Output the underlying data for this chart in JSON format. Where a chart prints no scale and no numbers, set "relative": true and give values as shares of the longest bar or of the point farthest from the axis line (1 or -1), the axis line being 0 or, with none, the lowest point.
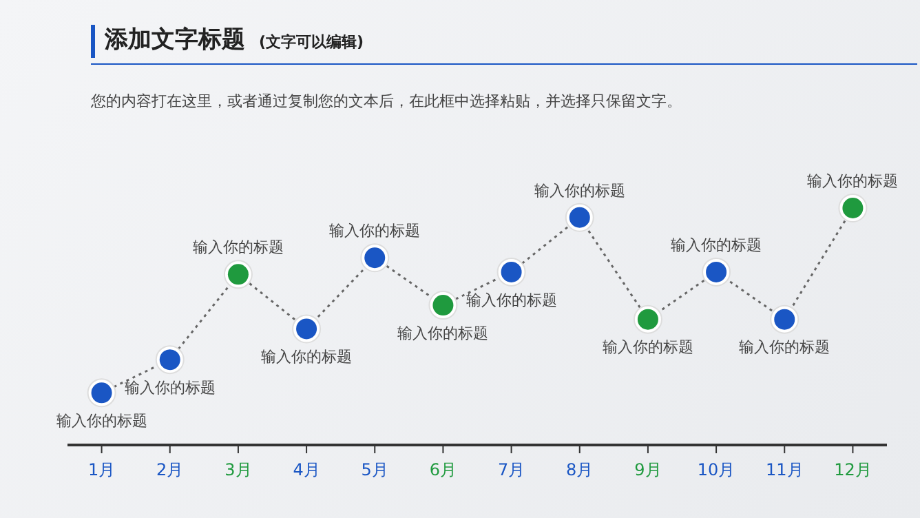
{
  "chart_data": {
    "type": "line",
    "title": "添加文字标题",
    "subtitle": "(文字可以编辑)",
    "categories": [
      "1月",
      "2月",
      "3月",
      "4月",
      "5月",
      "6月",
      "7月",
      "8月",
      "9月",
      "10月",
      "11月",
      "12月"
    ],
    "values": [
      0.22,
      0.36,
      0.72,
      0.49,
      0.79,
      0.59,
      0.73,
      0.96,
      0.53,
      0.73,
      0.53,
      1
    ],
    "colors": [
      "#1a56c4",
      "#1a56c4",
      "#1f9a3e",
      "#1a56c4",
      "#1a56c4",
      "#1f9a3e",
      "#1a56c4",
      "#1a56c4",
      "#1f9a3e",
      "#1a56c4",
      "#1a56c4",
      "#1f9a3e"
    ],
    "color": "#666666",
    "relative": true,
    "marker": "circle",
    "line_style": "dotted",
    "grid": false,
    "legend": false,
    "annotations": [
      "您的内容打在这里，或者通过复制您的文本后，在此框中选择粘贴，并选择只保留文字。",
      {
        "text": "输入你的标题",
        "x": "1月",
        "y": 0.22
      },
      {
        "text": "输入你的标题",
        "x": "2月",
        "y": 0.36
      },
      {
        "text": "输入你的标题",
        "x": "3月",
        "y": 0.72
      },
      {
        "text": "输入你的标题",
        "x": "4月",
        "y": 0.49
      },
      {
        "text": "输入你的标题",
        "x": "5月",
        "y": 0.79
      },
      {
        "text": "输入你的标题",
        "x": "6月",
        "y": 0.59
      },
      {
        "text": "输入你的标题",
        "x": "7月",
        "y": 0.73
      },
      {
        "text": "输入你的标题",
        "x": "8月",
        "y": 0.96
      },
      {
        "text": "输入你的标题",
        "x": "9月",
        "y": 0.53
      },
      {
        "text": "输入你的标题",
        "x": "10月",
        "y": 0.73
      },
      {
        "text": "输入你的标题",
        "x": "11月",
        "y": 0.53
      },
      {
        "text": "输入你的标题",
        "x": "12月",
        "y": 1
      }
    ]
  }
}
